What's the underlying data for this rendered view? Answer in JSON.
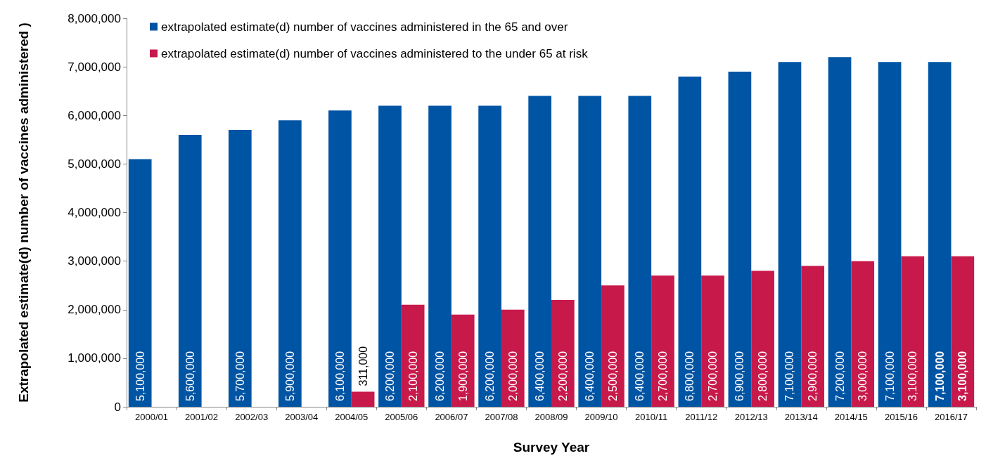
{
  "chart_data": {
    "type": "bar",
    "xlabel": "Survey Year",
    "ylabel": "Extrapolated estimate(d) number of vaccines administered )",
    "categories": [
      "2000/01",
      "2001/02",
      "2002/03",
      "2003/04",
      "2004/05",
      "2005/06",
      "2006/07",
      "2007/08",
      "2008/09",
      "2009/10",
      "2010/11",
      "2011/12",
      "2012/13",
      "2013/14",
      "2014/15",
      "2015/16",
      "2016/17"
    ],
    "series": [
      {
        "name": "extrapolated estimate(d) number of vaccines administered in the 65 and over",
        "color": "#0054a4",
        "values": [
          5100000,
          5600000,
          5700000,
          5900000,
          6100000,
          6200000,
          6200000,
          6200000,
          6400000,
          6400000,
          6400000,
          6800000,
          6900000,
          7100000,
          7200000,
          7100000,
          7100000
        ],
        "value_labels": [
          "5,100,000",
          "5,600,000",
          "5,700,000",
          "5,900,000",
          "6,100,000",
          "6,200,000",
          "6,200,000",
          "6,200,000",
          "6,400,000",
          "6,400,000",
          "6,400,000",
          "6,800,000",
          "6,900,000",
          "7,100,000",
          "7,200,000",
          "7,100,000",
          "7,100,000"
        ]
      },
      {
        "name": "extrapolated estimate(d) number of vaccines administered to the under 65 at risk",
        "color": "#c8194b",
        "values": [
          null,
          null,
          null,
          null,
          311000,
          2100000,
          1900000,
          2000000,
          2200000,
          2500000,
          2700000,
          2700000,
          2800000,
          2900000,
          3000000,
          3100000,
          3100000
        ],
        "value_labels": [
          null,
          null,
          null,
          null,
          "311,000",
          "2,100,000",
          "1,900,000",
          "2,000,000",
          "2,200,000",
          "2,500,000",
          "2,700,000",
          "2,700,000",
          "2,800,000",
          "2,900,000",
          "3,000,000",
          "3,100,000",
          "3,100,000"
        ]
      }
    ],
    "ylim": [
      0,
      8000000
    ],
    "yticks": [
      0,
      {
        "value": 1000000,
        "label": "1,000,000"
      },
      {
        "value": 2000000,
        "label": "2,000,000"
      },
      {
        "value": 3000000,
        "label": "3,000,000"
      },
      {
        "value": 4000000,
        "label": "4,000,000"
      },
      {
        "value": 5000000,
        "label": "5,000,000"
      },
      {
        "value": 6000000,
        "label": "6,000,000"
      },
      {
        "value": 7000000,
        "label": "7,000,000"
      },
      {
        "value": 8000000,
        "label": "8,000,000"
      }
    ],
    "grid": false,
    "legend": "top left"
  }
}
